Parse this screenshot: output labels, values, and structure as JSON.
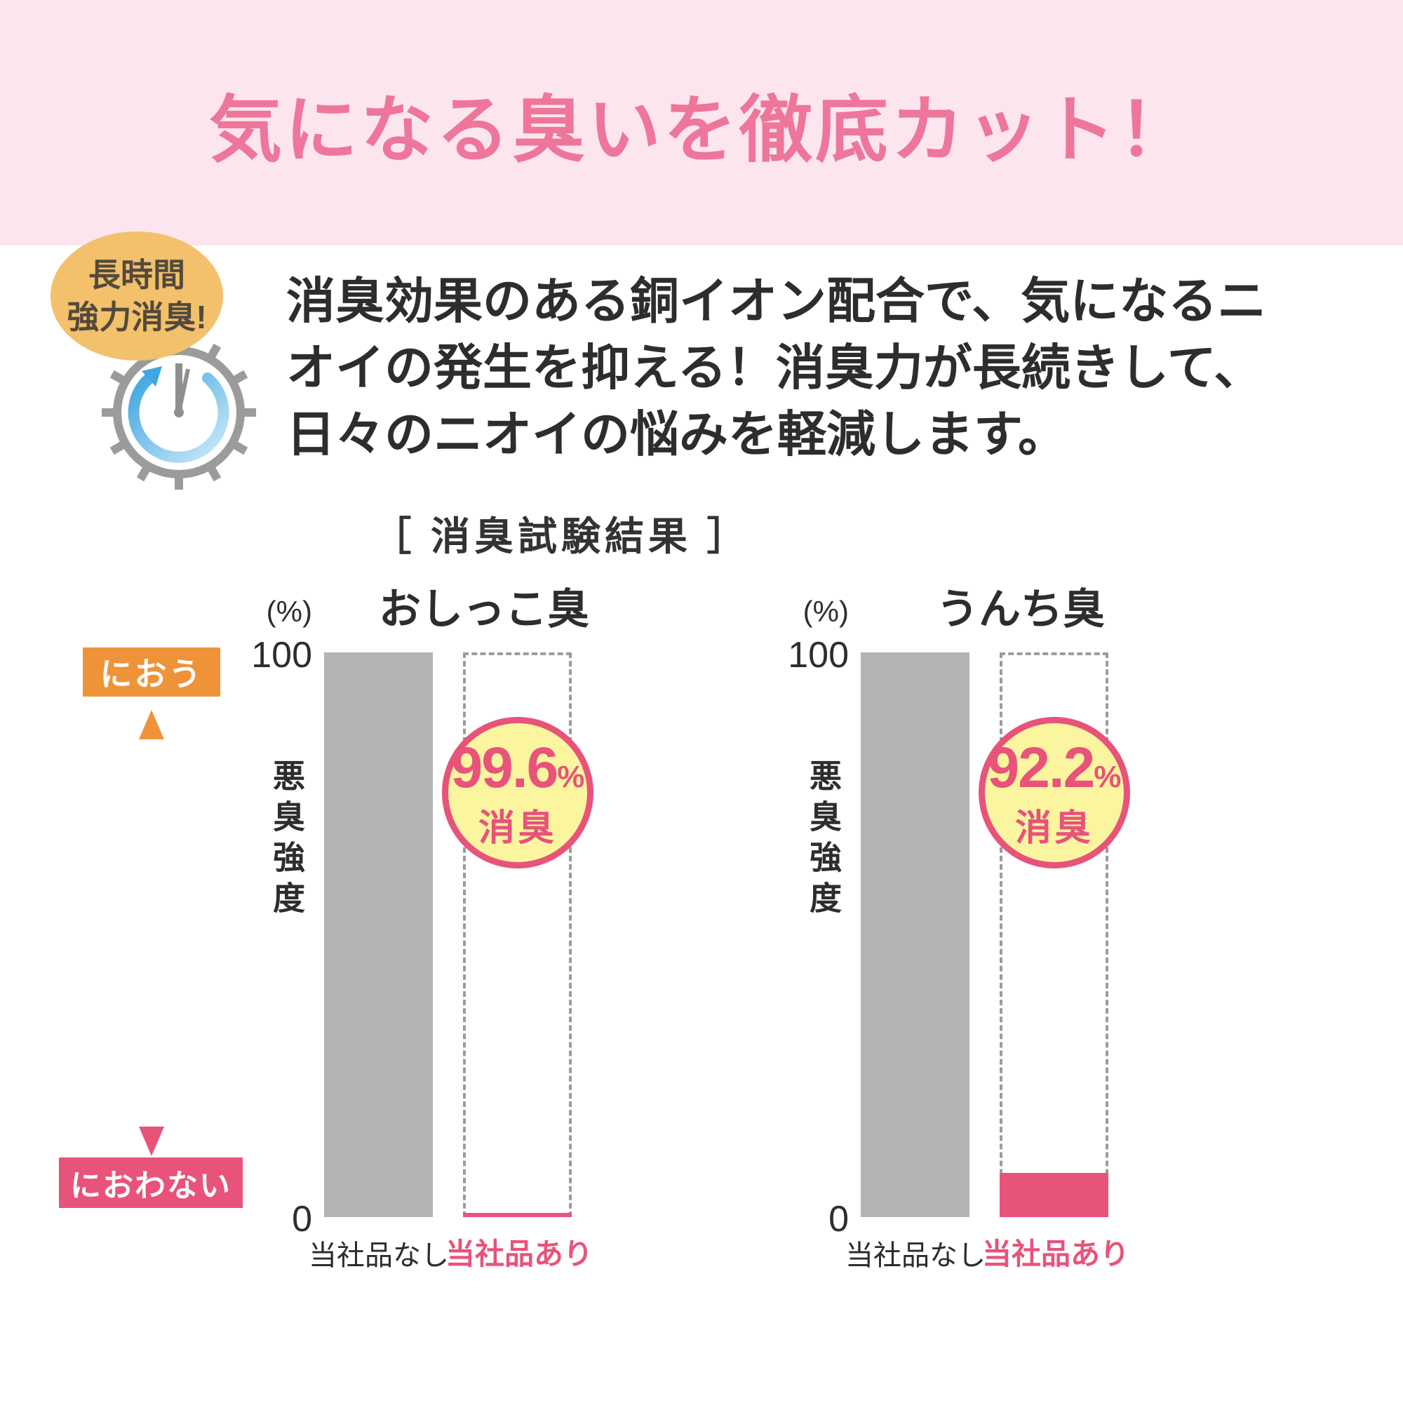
{
  "page": {
    "title": "気になる臭いを徹底カット！"
  },
  "feature": {
    "badge_line1": "長時間",
    "badge_line2": "強力消臭!",
    "description": "消臭効果のある銅イオン配合で、気になるニオイの発生を抑える！消臭力が長続きして、日々のニオイの悩みを軽減します。"
  },
  "results": {
    "heading": "［ 消臭試験結果 ］"
  },
  "scale": {
    "top_label": "におう",
    "bottom_label": "におわない"
  },
  "chart_data": [
    {
      "type": "bar",
      "title": "おしっこ臭",
      "unit_label": "(%)",
      "ylabel": "悪臭強度",
      "ylim": [
        0,
        100
      ],
      "yticks": [
        "100",
        "0"
      ],
      "categories": [
        "当社品なし",
        "当社品あり"
      ],
      "values": [
        100,
        0.4
      ],
      "badge": {
        "value": "99.6",
        "unit": "%",
        "label": "消臭"
      },
      "grid": false,
      "reference_bar": "dashed outline at 100%"
    },
    {
      "type": "bar",
      "title": "うんち臭",
      "unit_label": "(%)",
      "ylabel": "悪臭強度",
      "ylim": [
        0,
        100
      ],
      "yticks": [
        "100",
        "0"
      ],
      "categories": [
        "当社品なし",
        "当社品あり"
      ],
      "values": [
        100,
        7.8
      ],
      "badge": {
        "value": "92.2",
        "unit": "%",
        "label": "消臭"
      },
      "grid": false,
      "reference_bar": "dashed outline at 100%"
    }
  ],
  "icons": {
    "clock": "clock-with-rotation-arrow-icon",
    "scale_arrow": "double-headed-vertical-arrow-icon"
  },
  "colors": {
    "banner_bg": "#fce5ee",
    "title_pink": "#ee769b",
    "accent_pink": "#e8537a",
    "orange": "#ef9339",
    "time_badge_bg": "#f3c06c",
    "bar_gray": "#b4b4b4",
    "circle_yellow": "#fbf5a0",
    "clock_blue": "#3ea6e0",
    "text_dark": "#2d2d2d"
  }
}
